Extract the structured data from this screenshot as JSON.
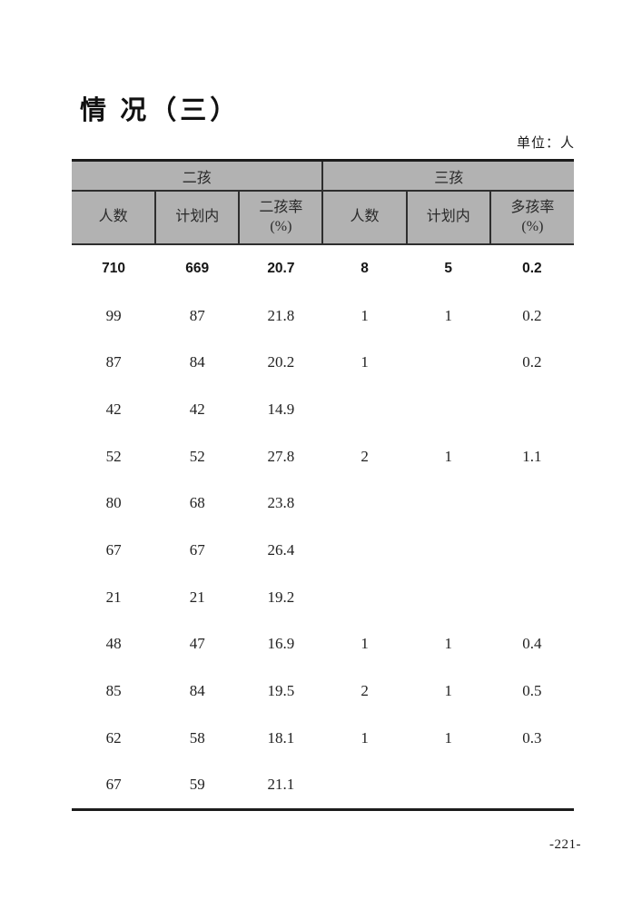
{
  "page": {
    "title": "情 况（三）",
    "unit_label": "单位：人",
    "page_number": "-221-"
  },
  "table": {
    "groups": [
      {
        "label": "二孩"
      },
      {
        "label": "三孩"
      }
    ],
    "sub_headers": [
      "人数",
      "计划内",
      "二孩率\n(%)",
      "人数",
      "计划内",
      "多孩率\n(%)"
    ],
    "rows": [
      {
        "total": true,
        "cells": [
          "710",
          "669",
          "20.7",
          "8",
          "5",
          "0.2"
        ]
      },
      {
        "total": false,
        "cells": [
          "99",
          "87",
          "21.8",
          "1",
          "1",
          "0.2"
        ]
      },
      {
        "total": false,
        "cells": [
          "87",
          "84",
          "20.2",
          "1",
          "",
          "0.2"
        ]
      },
      {
        "total": false,
        "cells": [
          "42",
          "42",
          "14.9",
          "",
          "",
          ""
        ]
      },
      {
        "total": false,
        "cells": [
          "52",
          "52",
          "27.8",
          "2",
          "1",
          "1.1"
        ]
      },
      {
        "total": false,
        "cells": [
          "80",
          "68",
          "23.8",
          "",
          "",
          ""
        ]
      },
      {
        "total": false,
        "cells": [
          "67",
          "67",
          "26.4",
          "",
          "",
          ""
        ]
      },
      {
        "total": false,
        "cells": [
          "21",
          "21",
          "19.2",
          "",
          "",
          ""
        ]
      },
      {
        "total": false,
        "cells": [
          "48",
          "47",
          "16.9",
          "1",
          "1",
          "0.4"
        ]
      },
      {
        "total": false,
        "cells": [
          "85",
          "84",
          "19.5",
          "2",
          "1",
          "0.5"
        ]
      },
      {
        "total": false,
        "cells": [
          "62",
          "58",
          "18.1",
          "1",
          "1",
          "0.3"
        ]
      },
      {
        "total": false,
        "cells": [
          "67",
          "59",
          "21.1",
          "",
          "",
          ""
        ]
      }
    ]
  }
}
